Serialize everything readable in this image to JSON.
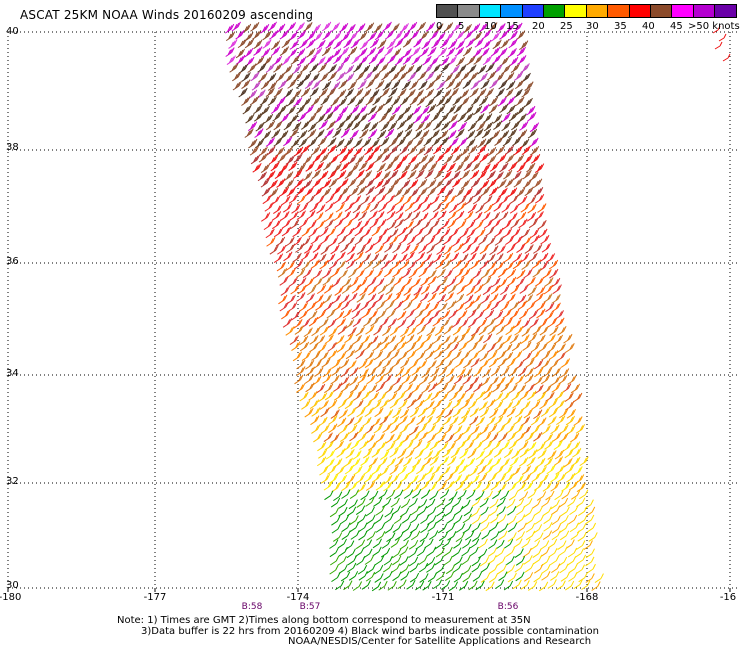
{
  "title": "ASCAT 25KM NOAA Winds 20160209 ascending",
  "legend": {
    "colors": [
      "#505050",
      "#8a8a8a",
      "#00e5ff",
      "#0090ff",
      "#2040ff",
      "#00a000",
      "#ffff00",
      "#ffaa00",
      "#ff5a00",
      "#ff0000",
      "#8b4a2a",
      "#ff00ff",
      "#b400d0",
      "#6a00a8"
    ],
    "labels": [
      "0",
      "5",
      "10",
      "15",
      "20",
      "25",
      "30",
      "35",
      "40",
      "45",
      ">50 knots"
    ]
  },
  "lat_labels": [
    "40",
    "38",
    "36",
    "34",
    "32",
    "30"
  ],
  "lon_labels": [
    "-180",
    "-177",
    "-174",
    "-171",
    "-168",
    "-16"
  ],
  "time_labels": [
    "B:58",
    "B:57",
    "B:56"
  ],
  "notes": [
    "Note: 1) Times are GMT 2)Times along bottom correspond to measurement at 35N",
    "3)Data buffer is 22 hrs from 20160209 4) Black wind barbs indicate possible contamination",
    "NOAA/NESDIS/Center for Satellite Applications and Research"
  ]
}
